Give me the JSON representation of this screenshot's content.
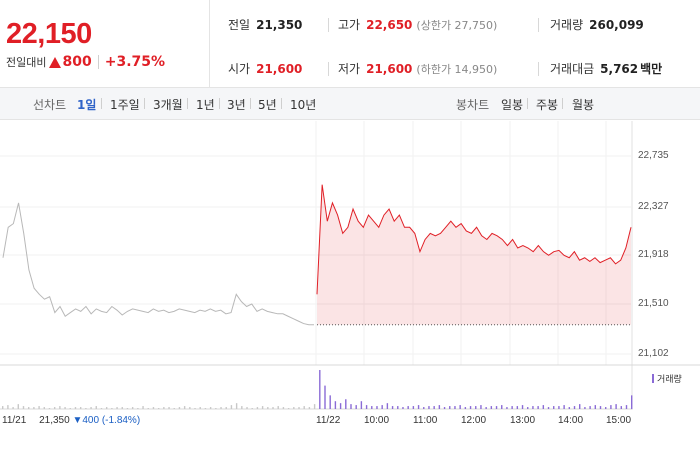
{
  "price": {
    "current": "22,150",
    "change_label": "전일대비",
    "change_value": "800",
    "change_pct": "+3.75%"
  },
  "stats": {
    "prev_close_label": "전일",
    "prev_close": "21,350",
    "high_label": "고가",
    "high": "22,650",
    "upper_limit": "(상한가 27,750)",
    "volume_label": "거래량",
    "volume": "260,099",
    "open_label": "시가",
    "open": "21,600",
    "low_label": "저가",
    "low": "21,600",
    "lower_limit": "(하한가 14,950)",
    "amount_label": "거래대금",
    "amount": "5,762",
    "amount_unit": "백만"
  },
  "tabs": {
    "line_label": "선차트",
    "line_periods": [
      "1일",
      "1주일",
      "3개월",
      "1년",
      "3년",
      "5년",
      "10년"
    ],
    "candle_label": "봉차트",
    "candle_periods": [
      "일봉",
      "주봉",
      "월봉"
    ]
  },
  "colors": {
    "up": "#e01f26",
    "down": "#1b5fc4",
    "accent": "#2e62c8",
    "volume": "#8a6bd6"
  },
  "chart_data": {
    "type": "line",
    "y_ticks": [
      "22,735",
      "22,327",
      "21,918",
      "21,510",
      "21,102"
    ],
    "ylim": [
      21102,
      22735
    ],
    "x_ticks": [
      "11/21",
      "11/22",
      "10:00",
      "11:00",
      "12:00",
      "13:00",
      "14:00",
      "15:00"
    ],
    "prev_day": {
      "date": "11/21",
      "close": "21,350",
      "change": "▼400 (-1.84%)"
    },
    "volume_label": "거래량",
    "series": [
      {
        "values": [
          21900,
          22150,
          22180,
          22350,
          22100,
          21800,
          21650,
          21600,
          21560,
          21580,
          21450,
          21500,
          21420,
          21450,
          21480,
          21460,
          21500,
          21440,
          21480,
          21460,
          21450,
          21500,
          21470,
          21430,
          21460,
          21480,
          21470,
          21460,
          21450,
          21480,
          21460,
          21470,
          21450,
          21460,
          21480,
          21470,
          21460,
          21450,
          21470,
          21460,
          21480,
          21460,
          21470,
          21440,
          21450,
          21600,
          21540,
          21500,
          21520,
          21460,
          21480,
          21460,
          21450,
          21440,
          21440,
          21420,
          21400,
          21380,
          21360,
          21350,
          21350
        ]
      },
      {
        "values": [
          21600,
          22500,
          22200,
          22350,
          22250,
          22100,
          22150,
          22300,
          22200,
          22150,
          22250,
          22200,
          22150,
          22250,
          22300,
          22200,
          22250,
          22150,
          22150,
          22100,
          21950,
          22050,
          22100,
          22080,
          22100,
          22150,
          22200,
          22150,
          22180,
          22120,
          22100,
          22150,
          22080,
          22050,
          22100,
          22080,
          22050,
          22000,
          22050,
          21980,
          22000,
          21980,
          21950,
          22000,
          21950,
          21920,
          21950,
          21960,
          21920,
          21900,
          21950,
          21880,
          21900,
          21870,
          21900,
          21860,
          21880,
          21900,
          21850,
          21880,
          21980,
          22150
        ]
      }
    ],
    "volume": [
      3,
      4,
      2,
      5,
      3,
      2,
      2,
      3,
      2,
      1,
      2,
      3,
      2,
      1,
      2,
      2,
      1,
      2,
      3,
      1,
      2,
      1,
      2,
      2,
      1,
      2,
      1,
      3,
      1,
      2,
      1,
      2,
      2,
      1,
      2,
      3,
      2,
      1,
      2,
      1,
      2,
      1,
      2,
      2,
      4,
      6,
      3,
      2,
      1,
      2,
      3,
      2,
      2,
      3,
      2,
      1,
      2,
      2,
      3,
      2,
      5,
      40,
      24,
      14,
      8,
      6,
      10,
      5,
      4,
      8,
      4,
      3,
      3,
      4,
      6,
      3,
      3,
      2,
      3,
      3,
      4,
      2,
      3,
      3,
      4,
      2,
      3,
      3,
      4,
      2,
      3,
      3,
      4,
      2,
      3,
      3,
      4,
      2,
      3,
      3,
      4,
      2,
      3,
      3,
      4,
      2,
      3,
      3,
      4,
      2,
      3,
      5,
      2,
      3,
      4,
      3,
      2,
      4,
      5,
      3,
      4,
      14
    ]
  }
}
